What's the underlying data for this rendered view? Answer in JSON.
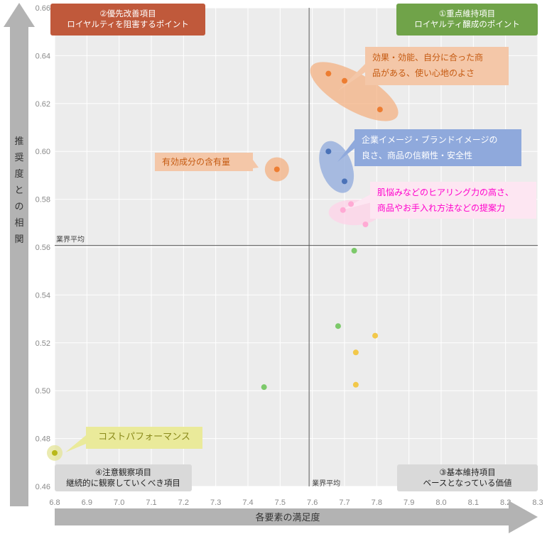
{
  "chart_data": {
    "type": "scatter",
    "xlabel": "各要素の満足度",
    "ylabel": "推奨度との相関",
    "xlim": [
      6.8,
      8.3
    ],
    "ylim": [
      0.46,
      0.66
    ],
    "x_ticks": [
      "6.8",
      "6.9",
      "7.0",
      "7.1",
      "7.2",
      "7.3",
      "7.4",
      "7.5",
      "7.6",
      "7.7",
      "7.8",
      "7.9",
      "8.0",
      "8.1",
      "8.2",
      "8.3"
    ],
    "y_ticks": [
      "0.46",
      "0.48",
      "0.50",
      "0.52",
      "0.54",
      "0.56",
      "0.58",
      "0.60",
      "0.62",
      "0.64",
      "0.66"
    ],
    "grid": true,
    "reference_lines": {
      "x": 7.59,
      "y": 0.5607,
      "x_label": "業界平均",
      "y_label": "業界平均"
    },
    "series": [
      {
        "color": "#ed7d31",
        "points": [
          [
            7.65,
            0.6325
          ],
          [
            7.7,
            0.6295
          ],
          [
            7.81,
            0.6175
          ],
          [
            7.49,
            0.5925
          ]
        ]
      },
      {
        "color": "#4a72b8",
        "points": [
          [
            7.65,
            0.6
          ],
          [
            7.7,
            0.5875
          ]
        ]
      },
      {
        "color": "#ffaad4",
        "points": [
          [
            7.72,
            0.578
          ],
          [
            7.695,
            0.5755
          ],
          [
            7.765,
            0.5695
          ]
        ]
      },
      {
        "color": "#7cc96a",
        "points": [
          [
            7.73,
            0.5585
          ],
          [
            7.68,
            0.527
          ],
          [
            7.45,
            0.5015
          ]
        ]
      },
      {
        "color": "#f2c84a",
        "points": [
          [
            7.795,
            0.523
          ],
          [
            7.735,
            0.516
          ],
          [
            7.735,
            0.5025
          ]
        ]
      },
      {
        "color": "#b9b81a",
        "points": [
          [
            6.8,
            0.474
          ]
        ]
      }
    ],
    "highlights": [
      {
        "cx": 7.73,
        "cy": 0.625,
        "rx": 70,
        "ry": 26,
        "rot": 30,
        "color": "#f4b183"
      },
      {
        "cx": 7.49,
        "cy": 0.5925,
        "rx": 17,
        "ry": 17,
        "rot": 0,
        "color": "#f4b183"
      },
      {
        "cx": 7.675,
        "cy": 0.5935,
        "rx": 22,
        "ry": 38,
        "rot": -20,
        "color": "#8fa9dc"
      },
      {
        "cx": 7.73,
        "cy": 0.5745,
        "rx": 36,
        "ry": 18,
        "rot": 0,
        "color": "#ffd3e8"
      },
      {
        "cx": 6.8,
        "cy": 0.474,
        "rx": 11,
        "ry": 11,
        "rot": 0,
        "color": "#e4e497"
      }
    ],
    "quadrants": {
      "top_left": {
        "line1": "②優先改善項目",
        "line2": "ロイヤルティを阻害するポイント",
        "color": "#c0593b"
      },
      "top_right": {
        "line1": "①重点維持項目",
        "line2": "ロイヤルティ醸成のポイント",
        "color": "#70a349"
      },
      "bottom_left": {
        "line1": "④注意観察項目",
        "line2": "継続的に観察していくべき項目",
        "color": "#d9d9d9"
      },
      "bottom_right": {
        "line1": "③基本維持項目",
        "line2": "ベースとなっている価値",
        "color": "#d9d9d9"
      }
    },
    "annotations": {
      "efficacy": {
        "line1": "効果・効能、自分に合った商",
        "line2": "品がある、使い心地のよさ",
        "color": "#f4c7a8",
        "text_color": "#c55a11"
      },
      "active": {
        "line1": "有効成分の含有量",
        "color": "#f4c7a8",
        "text_color": "#c55a11"
      },
      "brand": {
        "line1": "企業イメージ・ブランドイメージの",
        "line2": "良さ、商品の信頼性・安全性",
        "color": "#8fa9dc",
        "text_color": "#ffffff"
      },
      "hearing": {
        "line1": "肌悩みなどのヒアリング力の高さ、",
        "line2": "商品やお手入れ方法などの提案力",
        "color": "#fde6f2",
        "text_color": "#ff00cc"
      },
      "cost": {
        "line1": "コストパフォーマンス",
        "color": "#eaea9a",
        "text_color": "#8a8a1a"
      }
    }
  }
}
